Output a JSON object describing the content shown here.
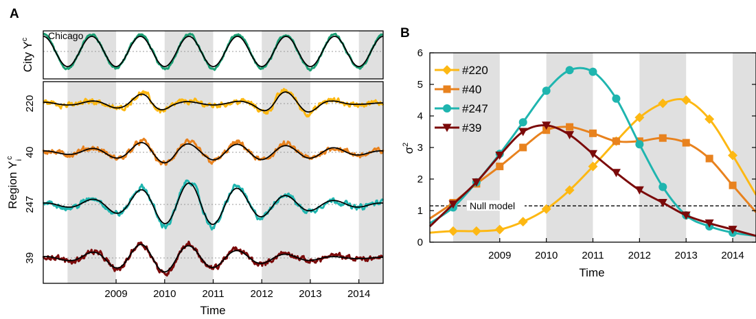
{
  "figure": {
    "panel_a_letter": "A",
    "panel_b_letter": "B"
  },
  "colors": {
    "#220": "#FDB813",
    "#40": "#E8821E",
    "#247": "#1FB5AF",
    "#39": "#7B0A0A",
    "city": "#1A9E73",
    "fit": "#000000",
    "shade": "#E0E0E0"
  },
  "chart_data": [
    {
      "type": "line",
      "panel": "A",
      "xlabel": "Time",
      "x_range": [
        2008.0,
        2015.0
      ],
      "x_tick_labels": [
        "2009",
        "2010",
        "2011",
        "2012",
        "2013",
        "2014"
      ],
      "x_ticks": [
        2009,
        2010,
        2011,
        2012,
        2013,
        2014
      ],
      "shaded_intervals": [
        [
          2008.5,
          2009.5
        ],
        [
          2010.5,
          2011.5
        ],
        [
          2012.5,
          2013.5
        ],
        [
          2014.5,
          2015.0
        ]
      ],
      "city_ylabel": "City Y",
      "city_ylabel_sup": "c",
      "region_ylabel": "Region Y",
      "region_ylabel_sup": "c",
      "region_ylabel_sub": "i",
      "city_annotation": "Chicago",
      "rows": [
        {
          "label": "220",
          "color": "#FDB813",
          "seasonal_amplitude": [
            0.1,
            0.1,
            0.2,
            0.35,
            0.8,
            0.2,
            0.1,
            0.1,
            0.25,
            0.9,
            0.7,
            0.2,
            0.05,
            0.05
          ]
        },
        {
          "label": "40",
          "color": "#E8821E",
          "seasonal_amplitude": [
            0.1,
            0.15,
            0.3,
            0.45,
            0.8,
            0.75,
            0.5,
            0.6,
            0.55,
            0.5,
            0.45,
            0.35,
            0.2,
            0.1
          ]
        },
        {
          "label": "247",
          "color": "#1FB5AF",
          "seasonal_amplitude": [
            0.1,
            0.2,
            0.4,
            0.7,
            1.2,
            1.5,
            1.6,
            1.3,
            1.0,
            0.7,
            0.5,
            0.3,
            0.2,
            0.1
          ]
        },
        {
          "label": "39",
          "color": "#7B0A0A",
          "seasonal_amplitude": [
            0.1,
            0.2,
            0.45,
            0.8,
            1.05,
            1.0,
            0.8,
            0.6,
            0.45,
            0.3,
            0.2,
            0.1,
            0.05,
            0.05
          ]
        }
      ]
    },
    {
      "type": "line",
      "panel": "B",
      "xlabel": "Time",
      "ylabel": "σ",
      "ylabel_sup": "2",
      "x_range": [
        2008.0,
        2015.0
      ],
      "ylim": [
        0,
        6
      ],
      "y_ticks": [
        0,
        1,
        2,
        3,
        4,
        5,
        6
      ],
      "y_tick_labels": [
        "0",
        "1",
        "2",
        "3",
        "4",
        "5",
        "6"
      ],
      "x_ticks": [
        2009,
        2010,
        2011,
        2012,
        2013,
        2014
      ],
      "x_tick_labels": [
        "2009",
        "2010",
        "2011",
        "2012",
        "2013",
        "2014"
      ],
      "shaded_intervals": [
        [
          2008.5,
          2009.5
        ],
        [
          2010.5,
          2011.5
        ],
        [
          2012.5,
          2013.5
        ],
        [
          2014.5,
          2015.0
        ]
      ],
      "reference_line": {
        "label": "Null model",
        "y": 1.15
      },
      "legend_position": "top-left",
      "x": [
        2008.0,
        2008.5,
        2009.0,
        2009.5,
        2010.0,
        2010.5,
        2011.0,
        2011.5,
        2012.0,
        2012.5,
        2013.0,
        2013.5,
        2014.0,
        2014.5,
        2015.0
      ],
      "series": [
        {
          "name": "#220",
          "color": "#FDB813",
          "marker": "diamond",
          "values": [
            0.3,
            0.35,
            0.35,
            0.4,
            0.65,
            1.05,
            1.65,
            2.4,
            3.2,
            3.95,
            4.4,
            4.5,
            3.9,
            2.75,
            1.5
          ]
        },
        {
          "name": "#40",
          "color": "#E8821E",
          "marker": "square",
          "values": [
            0.75,
            1.25,
            1.85,
            2.4,
            3.0,
            3.55,
            3.65,
            3.45,
            3.2,
            3.2,
            3.3,
            3.15,
            2.65,
            1.8,
            0.95
          ]
        },
        {
          "name": "#247",
          "color": "#1FB5AF",
          "marker": "circle",
          "values": [
            0.6,
            1.1,
            1.9,
            2.8,
            3.8,
            4.8,
            5.45,
            5.4,
            4.55,
            3.1,
            1.75,
            0.85,
            0.5,
            0.3,
            0.2
          ]
        },
        {
          "name": "#39",
          "color": "#7B0A0A",
          "marker": "triangle-down",
          "values": [
            0.5,
            1.2,
            1.9,
            2.75,
            3.5,
            3.7,
            3.4,
            2.8,
            2.2,
            1.65,
            1.25,
            0.85,
            0.6,
            0.4,
            0.2
          ]
        }
      ]
    }
  ]
}
